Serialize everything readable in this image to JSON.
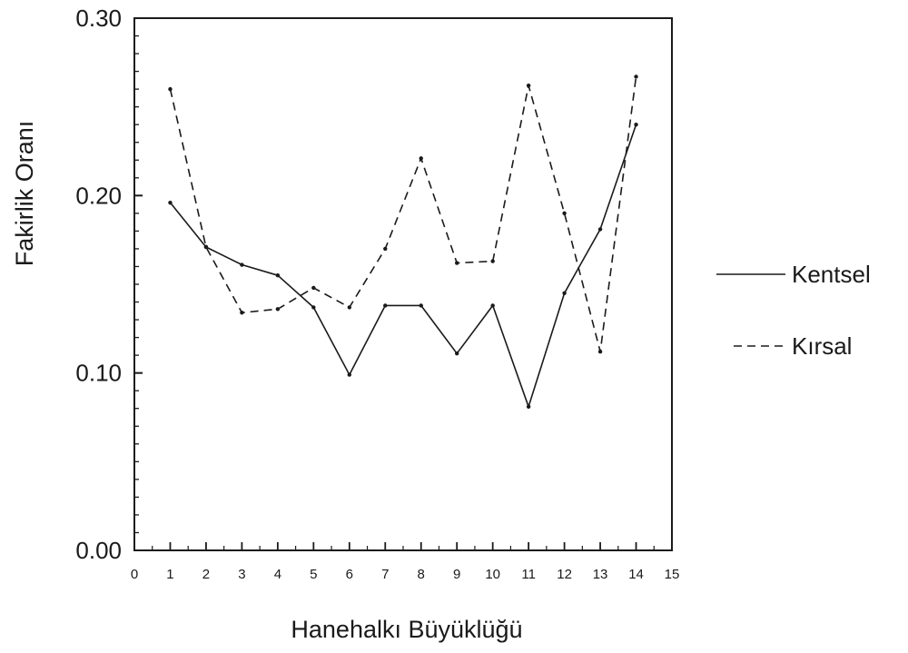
{
  "chart_data": {
    "type": "line",
    "xlabel": "Hanehalkı Büyüklüğü",
    "ylabel": "Fakirlik Oranı",
    "xlim": [
      0,
      15
    ],
    "ylim": [
      0,
      0.3
    ],
    "x_ticks": [
      "0",
      "1",
      "2",
      "3",
      "4",
      "5",
      "6",
      "7",
      "8",
      "9",
      "10",
      "11",
      "12",
      "13",
      "14",
      "15"
    ],
    "y_ticks": [
      "0.00",
      "0.10",
      "0.20",
      "0.30"
    ],
    "grid": false,
    "legend_position": "right",
    "x": [
      1,
      2,
      3,
      4,
      5,
      6,
      7,
      8,
      9,
      10,
      11,
      12,
      13,
      14
    ],
    "series": [
      {
        "name": "Kentsel",
        "style": "solid",
        "values": [
          0.196,
          0.171,
          0.161,
          0.155,
          0.137,
          0.099,
          0.138,
          0.138,
          0.111,
          0.138,
          0.081,
          0.145,
          0.181,
          0.24
        ]
      },
      {
        "name": "Kırsal",
        "style": "dashed",
        "values": [
          0.26,
          0.171,
          0.134,
          0.136,
          0.148,
          0.137,
          0.17,
          0.221,
          0.162,
          0.163,
          0.262,
          0.19,
          0.112,
          0.267
        ]
      }
    ]
  }
}
